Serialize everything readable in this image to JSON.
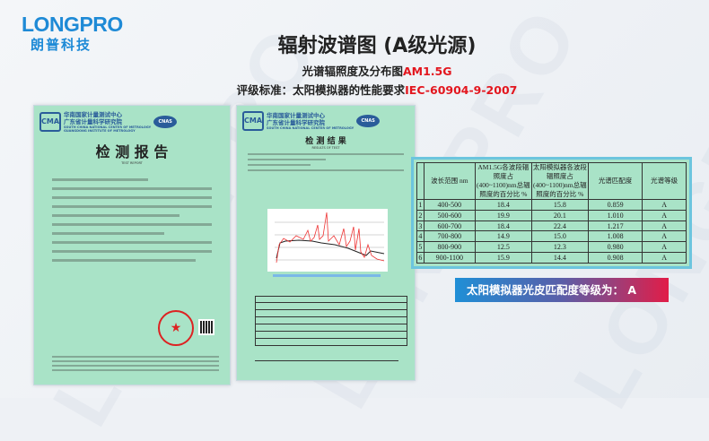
{
  "logo": {
    "brand": "LONGPRO",
    "brand_cn": "朗普科技"
  },
  "header": {
    "title": "辐射波谱图 (A级光源)",
    "subtitle_prefix": "光谱辐照度及分布图",
    "subtitle_highlight": "AM1.5G",
    "standard_prefix": "评级标准：太阳模拟器的性能要求",
    "standard_highlight": "IEC-60904-9-2007"
  },
  "documents": {
    "org_cn_1": "华南国家计量测试中心",
    "org_cn_2": "广东省计量科学研究院",
    "org_en_1": "SOUTH CHINA NATIONAL CENTER OF METROLOGY",
    "org_en_2": "GUANGDONG INSTITUTE OF METROLOGY",
    "cma": "CMA",
    "cnas": "CNAS",
    "report_title": "检 测 报 告",
    "report_title_en": "TEST REPORT",
    "results_title": "检 测 结 果",
    "results_title_en": "RESULTS OF TEST"
  },
  "table": {
    "headers": [
      "",
      "波长范围 nm",
      "AM1.5G各波段辐照度占(400~1100)nm总辐照度的百分比 %",
      "太阳模拟器各波段辐照度占(400~1100)nm总辐照度的百分比 %",
      "光谱匹配度",
      "光谱等级"
    ],
    "rows": [
      [
        "1",
        "400-500",
        "18.4",
        "15.8",
        "0.859",
        "A"
      ],
      [
        "2",
        "500-600",
        "19.9",
        "20.1",
        "1.010",
        "A"
      ],
      [
        "3",
        "600-700",
        "18.4",
        "22.4",
        "1.217",
        "A"
      ],
      [
        "4",
        "700-800",
        "14.9",
        "15.0",
        "1.008",
        "A"
      ],
      [
        "5",
        "800-900",
        "12.5",
        "12.3",
        "0.980",
        "A"
      ],
      [
        "6",
        "900-1100",
        "15.9",
        "14.4",
        "0.908",
        "A"
      ]
    ]
  },
  "banner": {
    "text": "太阳模拟器光皮匹配度等级为：  A"
  },
  "colors": {
    "accent_red": "#e3161e",
    "brand_blue": "#1e8ad6",
    "doc_green": "#a9e3c7",
    "banner_start": "#1f8fd6",
    "banner_end": "#e11d48"
  }
}
